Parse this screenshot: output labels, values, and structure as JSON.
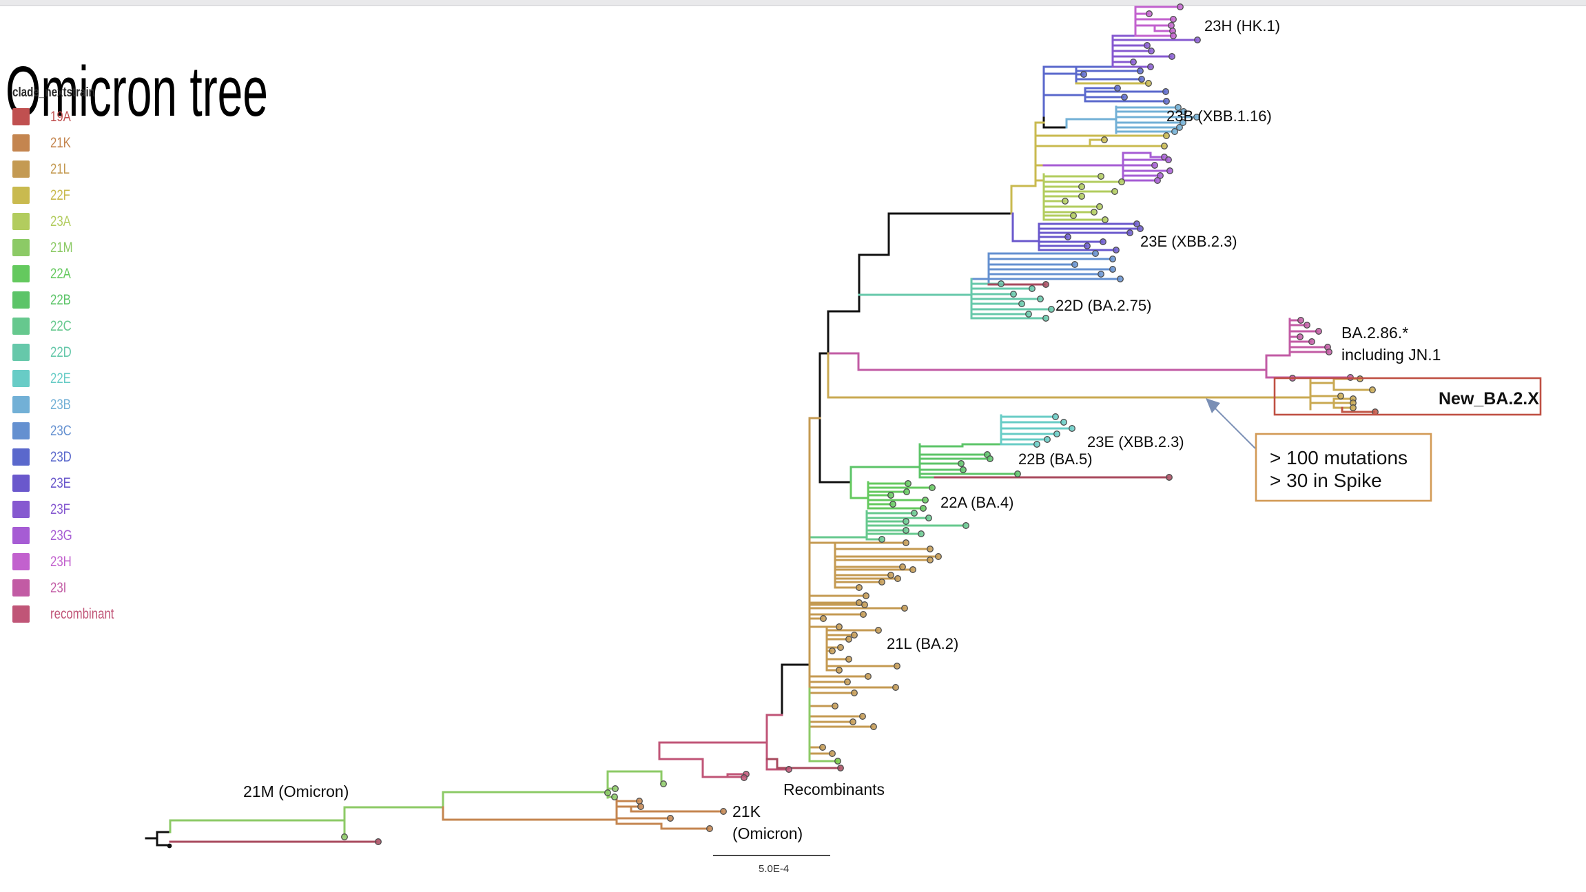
{
  "title": "Omicron tree",
  "legend": {
    "header": "clade_nextstrain",
    "items": [
      {
        "label": "19A",
        "color": "#c05050"
      },
      {
        "label": "21K",
        "color": "#c4854f"
      },
      {
        "label": "21L",
        "color": "#c49a52"
      },
      {
        "label": "22F",
        "color": "#c9ba4f"
      },
      {
        "label": "23A",
        "color": "#b2cc5e"
      },
      {
        "label": "21M",
        "color": "#8cca66"
      },
      {
        "label": "22A",
        "color": "#64c95e"
      },
      {
        "label": "22B",
        "color": "#5cc468"
      },
      {
        "label": "22C",
        "color": "#66c88e"
      },
      {
        "label": "22D",
        "color": "#66c8aa"
      },
      {
        "label": "22E",
        "color": "#68ccc6"
      },
      {
        "label": "23B",
        "color": "#72b0d6"
      },
      {
        "label": "23C",
        "color": "#6490d0"
      },
      {
        "label": "23D",
        "color": "#5a68cc"
      },
      {
        "label": "23E",
        "color": "#6a58cc"
      },
      {
        "label": "23F",
        "color": "#8659d0"
      },
      {
        "label": "23G",
        "color": "#a65cd4"
      },
      {
        "label": "23H",
        "color": "#c261ce"
      },
      {
        "label": "23I",
        "color": "#c25ba4"
      },
      {
        "label": "recombinant",
        "color": "#c05577"
      }
    ]
  },
  "colors": {
    "19A": "#c05050",
    "21K": "#c4854f",
    "21L": "#c49a52",
    "22F": "#c9ba4f",
    "23A": "#b2cc5e",
    "21M": "#8cca66",
    "22A": "#64c95e",
    "22B": "#5cc468",
    "22C": "#66c88e",
    "22D": "#66c8aa",
    "22E": "#68ccc6",
    "23B": "#72b0d6",
    "23C": "#6490d0",
    "23D": "#5a68cc",
    "23E": "#6a58cc",
    "23F": "#8659d0",
    "23G": "#a65cd4",
    "23H": "#c261ce",
    "23I": "#c25ba4",
    "recombinant": "#c05577",
    "black": "#111111",
    "maroon": "#a84a5e",
    "olive": "#c9a952",
    "red_tip": "#c05545",
    "bright_green": "#72c83e",
    "arrow": "#7a8fb5",
    "box_red": "#bf5043",
    "box_orange": "#d29a55",
    "scalebar": "#4a4a4a",
    "tip_ring": "#4d4d4d"
  },
  "tree": {
    "labels": {
      "clade_23h": "23H (HK.1)",
      "clade_23b": "23B (XBB.1.16)",
      "clade_23e_upper": "23E (XBB.2.3)",
      "clade_22d": "22D (BA.2.75)",
      "ba286_line1": "BA.2.86.*",
      "ba286_line2": "including JN.1",
      "new_ba2x": "New_BA.2.X",
      "clade_23e_lower": "23E (XBB.2.3)",
      "clade_22b": "22B (BA.5)",
      "clade_22a": "22A (BA.4)",
      "clade_21l": "21L (BA.2)",
      "recombinants": "Recombinants",
      "clade_21m": "21M (Omicron)",
      "clade_21k_line1": "21K",
      "clade_21k_line2": "(Omicron)"
    }
  },
  "annotation": {
    "line1": "> 100 mutations",
    "line2": "> 30 in Spike"
  },
  "scale_bar": {
    "label": "5.0E-4"
  }
}
